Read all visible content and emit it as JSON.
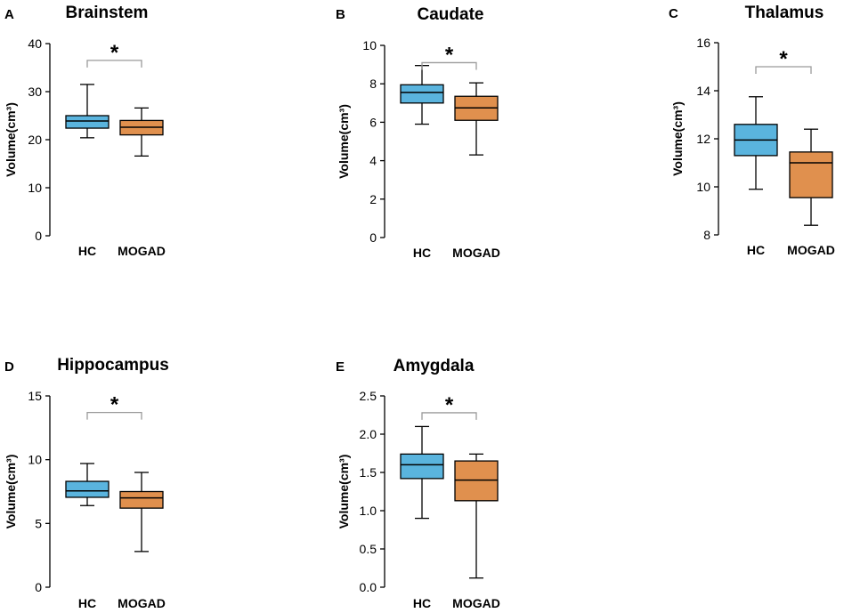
{
  "colors": {
    "hc": "#5ab4de",
    "mogad": "#e0904e",
    "axis": "#000000",
    "bracket": "#9a9a9a"
  },
  "chart_data": [
    {
      "panel": "A",
      "type": "box",
      "title": "Brainstem",
      "ylabel": "Volume(cm³)",
      "ylim": [
        0,
        40
      ],
      "yticks": [
        0,
        10,
        20,
        30,
        40
      ],
      "ytick_labels": [
        "0",
        "10",
        "20",
        "30",
        "40"
      ],
      "categories": [
        "HC",
        "MOGAD"
      ],
      "boxes": [
        {
          "group": "HC",
          "min": 20.4,
          "q1": 22.4,
          "median": 23.9,
          "q3": 25.0,
          "max": 31.5
        },
        {
          "group": "MOGAD",
          "min": 16.6,
          "q1": 21.0,
          "median": 22.6,
          "q3": 24.0,
          "max": 26.6
        }
      ],
      "significance": "*",
      "bracket_y": 36.5
    },
    {
      "panel": "B",
      "type": "box",
      "title": "Caudate",
      "ylabel": "Volume(cm³)",
      "ylim": [
        0,
        10
      ],
      "yticks": [
        0,
        2,
        4,
        6,
        8,
        10
      ],
      "ytick_labels": [
        "0",
        "2",
        "4",
        "6",
        "8",
        "10"
      ],
      "categories": [
        "HC",
        "MOGAD"
      ],
      "boxes": [
        {
          "group": "HC",
          "min": 5.9,
          "q1": 7.0,
          "median": 7.55,
          "q3": 7.95,
          "max": 8.95
        },
        {
          "group": "MOGAD",
          "min": 4.3,
          "q1": 6.1,
          "median": 6.75,
          "q3": 7.35,
          "max": 8.05
        }
      ],
      "significance": "*",
      "bracket_y": 9.1
    },
    {
      "panel": "C",
      "type": "box",
      "title": "Thalamus",
      "ylabel": "Volume(cm³)",
      "ylim": [
        8,
        16
      ],
      "yticks": [
        8,
        10,
        12,
        14,
        16
      ],
      "ytick_labels": [
        "8",
        "10",
        "12",
        "14",
        "16"
      ],
      "categories": [
        "HC",
        "MOGAD"
      ],
      "boxes": [
        {
          "group": "HC",
          "min": 9.9,
          "q1": 11.3,
          "median": 11.95,
          "q3": 12.6,
          "max": 13.75
        },
        {
          "group": "MOGAD",
          "min": 8.4,
          "q1": 9.55,
          "median": 11.0,
          "q3": 11.45,
          "max": 12.4
        }
      ],
      "significance": "*",
      "bracket_y": 15.0
    },
    {
      "panel": "D",
      "type": "box",
      "title": "Hippocampus",
      "ylabel": "Volume(cm³)",
      "ylim": [
        0,
        15
      ],
      "yticks": [
        0,
        5,
        10,
        15
      ],
      "ytick_labels": [
        "0",
        "5",
        "10",
        "15"
      ],
      "categories": [
        "HC",
        "MOGAD"
      ],
      "boxes": [
        {
          "group": "HC",
          "min": 6.4,
          "q1": 7.05,
          "median": 7.55,
          "q3": 8.3,
          "max": 9.7
        },
        {
          "group": "MOGAD",
          "min": 2.8,
          "q1": 6.2,
          "median": 7.0,
          "q3": 7.5,
          "max": 9.0
        }
      ],
      "significance": "*",
      "bracket_y": 13.7
    },
    {
      "panel": "E",
      "type": "box",
      "title": "Amygdala",
      "ylabel": "Volume(cm³)",
      "ylim": [
        0,
        2.5
      ],
      "yticks": [
        0,
        0.5,
        1.0,
        1.5,
        2.0,
        2.5
      ],
      "ytick_labels": [
        "0.0",
        "0.5",
        "1.0",
        "1.5",
        "2.0",
        "2.5"
      ],
      "categories": [
        "HC",
        "MOGAD"
      ],
      "boxes": [
        {
          "group": "HC",
          "min": 0.9,
          "q1": 1.42,
          "median": 1.6,
          "q3": 1.74,
          "max": 2.1
        },
        {
          "group": "MOGAD",
          "min": 0.12,
          "q1": 1.13,
          "median": 1.4,
          "q3": 1.65,
          "max": 1.74
        }
      ],
      "significance": "*",
      "bracket_y": 2.28
    }
  ]
}
